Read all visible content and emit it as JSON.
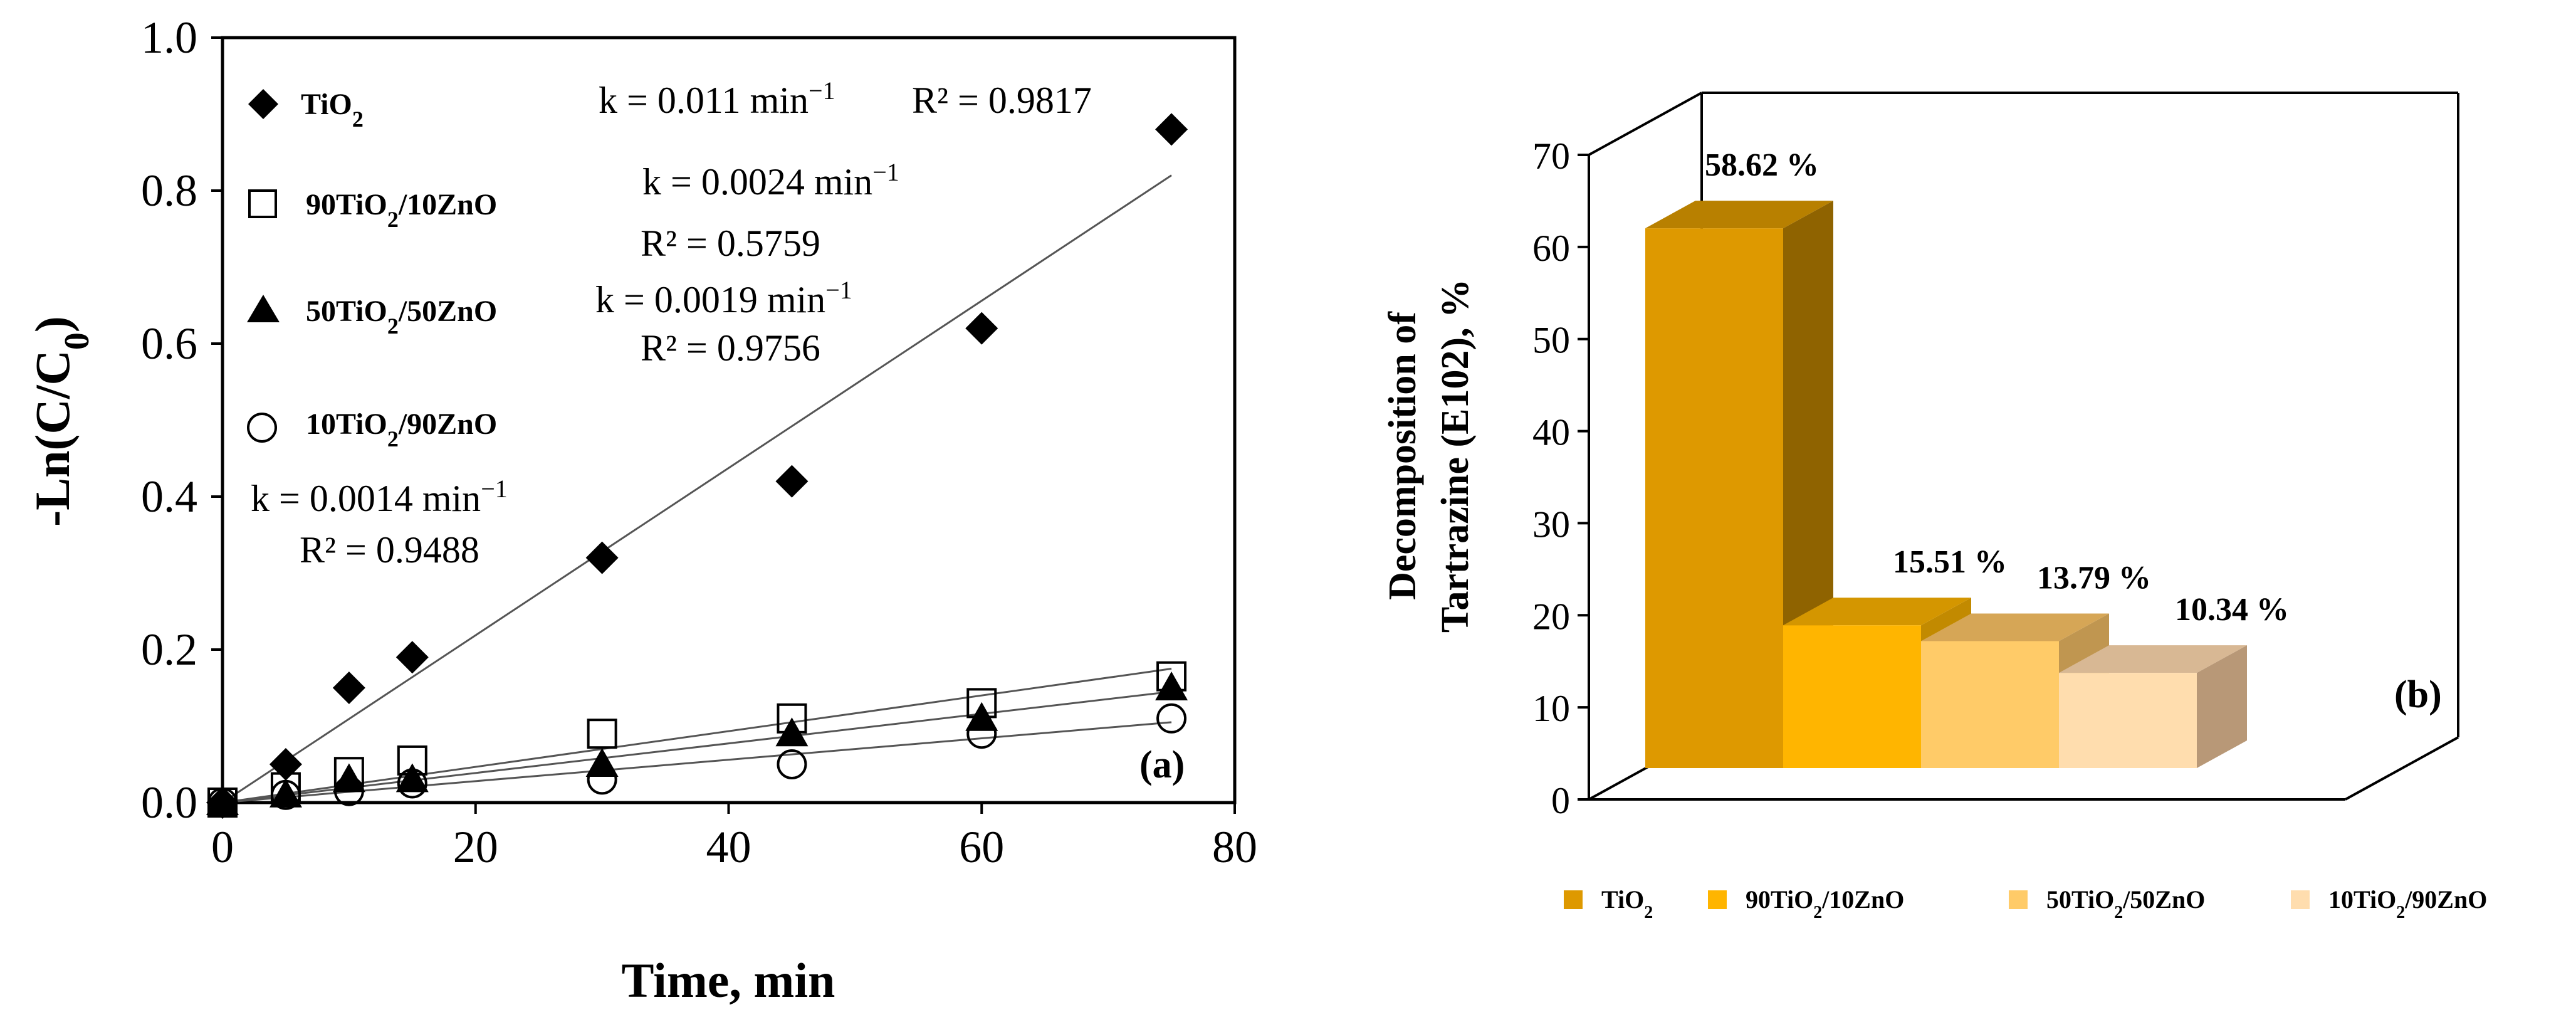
{
  "chart_data": [
    {
      "type": "scatter",
      "panel_label": "(a)",
      "xlabel": "Time, min",
      "ylabel": "-Ln(C/C",
      "ylabel_sub": "0",
      "ylabel_close": ")",
      "xlim": [
        0,
        80
      ],
      "ylim": [
        0,
        1.0
      ],
      "x_ticks": [
        "0",
        "20",
        "40",
        "60",
        "80"
      ],
      "y_ticks": [
        "0.0",
        "0.2",
        "0.4",
        "0.6",
        "0.8",
        "1.0"
      ],
      "series": [
        {
          "name": "TiO2",
          "label_main": "TiO",
          "label_sub": "2",
          "label_tail": "",
          "marker": "diamond",
          "x": [
            0,
            5,
            10,
            15,
            30,
            45,
            60,
            75
          ],
          "y": [
            0.0,
            0.05,
            0.15,
            0.19,
            0.32,
            0.42,
            0.62,
            0.88
          ],
          "fit_end": 0.82,
          "k_text": "k = 0.011 min",
          "k_sup": "−1",
          "r2_text": "R² = 0.9817"
        },
        {
          "name": "90TiO2/10ZnO",
          "label_main": "90TiO",
          "label_sub": "2",
          "label_tail": "/10ZnO",
          "marker": "square-open",
          "x": [
            0,
            5,
            10,
            15,
            30,
            45,
            60,
            75
          ],
          "y": [
            0.0,
            0.02,
            0.04,
            0.055,
            0.09,
            0.11,
            0.13,
            0.165
          ],
          "fit_end": 0.175,
          "k_text": "k = 0.0024 min",
          "k_sup": "−1",
          "r2_text": "R² = 0.5759"
        },
        {
          "name": "50TiO2/50ZnO",
          "label_main": "50TiO",
          "label_sub": "2",
          "label_tail": "/50ZnO",
          "marker": "triangle",
          "x": [
            0,
            5,
            10,
            15,
            30,
            45,
            60,
            75
          ],
          "y": [
            0.0,
            0.01,
            0.03,
            0.03,
            0.05,
            0.09,
            0.11,
            0.15
          ],
          "fit_end": 0.145,
          "k_text": "k = 0.0019 min",
          "k_sup": "−1",
          "r2_text": "R² = 0.9756"
        },
        {
          "name": "10TiO2/90ZnO",
          "label_main": "10TiO",
          "label_sub": "2",
          "label_tail": "/90ZnO",
          "marker": "circle-open",
          "x": [
            0,
            5,
            10,
            15,
            30,
            45,
            60,
            75
          ],
          "y": [
            0.0,
            0.01,
            0.015,
            0.025,
            0.03,
            0.05,
            0.09,
            0.11
          ],
          "fit_end": 0.105,
          "k_text": "k = 0.0014 min",
          "k_sup": "−1",
          "r2_text": "R² = 0.9488"
        }
      ]
    },
    {
      "type": "bar",
      "panel_label": "(b)",
      "ylabel_line1": "Decomposition of",
      "ylabel_line2": "Tartrazine (E102), %",
      "ylim": [
        0,
        70
      ],
      "y_ticks": [
        "0",
        "10",
        "20",
        "30",
        "40",
        "50",
        "60",
        "70"
      ],
      "categories": [
        "TiO2",
        "90TiO2/10ZnO",
        "50TiO2/50ZnO",
        "10TiO2/90ZnO"
      ],
      "values": [
        58.62,
        15.51,
        13.79,
        10.34
      ],
      "value_labels": [
        "58.62 %",
        "15.51 %",
        "13.79 %",
        "10.34 %"
      ],
      "legend": [
        {
          "main": "TiO",
          "sub": "2",
          "tail": ""
        },
        {
          "main": "90TiO",
          "sub": "2",
          "tail": "/10ZnO"
        },
        {
          "main": "50TiO",
          "sub": "2",
          "tail": "/50ZnO"
        },
        {
          "main": "10TiO",
          "sub": "2",
          "tail": "/90ZnO"
        }
      ],
      "colors": [
        "#DE9900",
        "#FFB500",
        "#FFCB68",
        "#FFDDAE"
      ],
      "side_colors": [
        "#8F6300",
        "#C28A00",
        "#C09650",
        "#B89877"
      ],
      "top_colors": [
        "#B88000",
        "#D49600",
        "#D6A656",
        "#D8B894"
      ]
    }
  ]
}
